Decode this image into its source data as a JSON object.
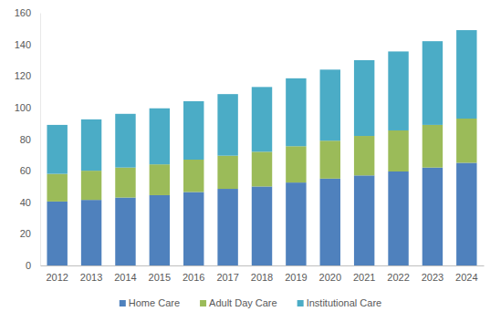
{
  "chart_data": {
    "type": "bar",
    "stacked": true,
    "grid": false,
    "legend": "bottom",
    "categories": [
      "2012",
      "2013",
      "2014",
      "2015",
      "2016",
      "2017",
      "2018",
      "2019",
      "2020",
      "2021",
      "2022",
      "2023",
      "2024"
    ],
    "series": [
      {
        "name": "Home Care",
        "color": "#4f81bd",
        "values": [
          40.5,
          41.5,
          43,
          44.5,
          46.5,
          48.5,
          50,
          52.5,
          55,
          57,
          59.5,
          62,
          65
        ]
      },
      {
        "name": "Adult Day Care",
        "color": "#9bbb59",
        "values": [
          17.5,
          18.5,
          19,
          19.5,
          20.5,
          21,
          22,
          23,
          24,
          25,
          26,
          27,
          28
        ]
      },
      {
        "name": "Institutional Care",
        "color": "#4bacc6",
        "values": [
          31,
          32.5,
          34,
          35.5,
          37,
          39,
          41,
          43,
          45,
          48,
          50,
          53,
          56
        ]
      }
    ],
    "ylim": [
      0,
      160
    ],
    "yticks": [
      0,
      20,
      40,
      60,
      80,
      100,
      120,
      140,
      160
    ]
  }
}
